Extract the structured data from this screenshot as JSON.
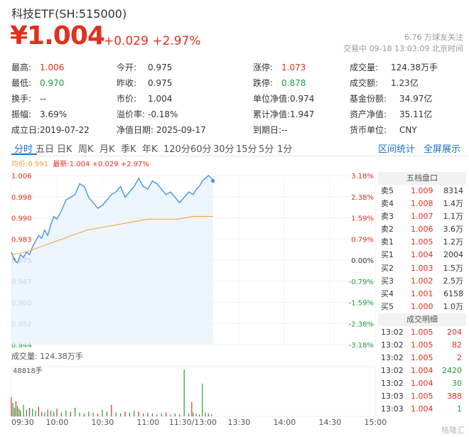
{
  "header": {
    "title": "科技ETF(SH:515000)",
    "price": "¥1.004",
    "change": "+0.029",
    "change_pct": "+2.97%",
    "followers": "6.76 万球友关注",
    "trade_status": "交易中 09-18 13:03:09 北京时间"
  },
  "stats": [
    [
      {
        "label": "最高:",
        "value": "1.006",
        "cls": "v-red"
      },
      {
        "label": "今开:",
        "value": "0.975",
        "cls": ""
      },
      {
        "label": "涨停:",
        "value": "1.073",
        "cls": "v-red"
      },
      {
        "label": "成交量:",
        "value": "124.38万手",
        "cls": ""
      }
    ],
    [
      {
        "label": "最低:",
        "value": "0.970",
        "cls": "v-green"
      },
      {
        "label": "昨收:",
        "value": "0.975",
        "cls": ""
      },
      {
        "label": "跌停:",
        "value": "0.878",
        "cls": "v-green"
      },
      {
        "label": "成交额:",
        "value": "1.23亿",
        "cls": ""
      }
    ],
    [
      {
        "label": "换手:",
        "value": "--",
        "cls": ""
      },
      {
        "label": "市价:",
        "value": "1.004",
        "cls": ""
      },
      {
        "label": "单位净值:",
        "value": "0.974",
        "cls": ""
      },
      {
        "label": "基金份额:",
        "value": "34.97亿",
        "cls": ""
      }
    ],
    [
      {
        "label": "振幅:",
        "value": "3.69%",
        "cls": ""
      },
      {
        "label": "溢价率:",
        "value": "-0.18%",
        "cls": ""
      },
      {
        "label": "累计净值:",
        "value": "1.947",
        "cls": ""
      },
      {
        "label": "资产净值:",
        "value": "35.11亿",
        "cls": ""
      }
    ],
    [
      {
        "label": "成立日:",
        "value": "2019-07-22",
        "cls": ""
      },
      {
        "label": "净值日期:",
        "value": "2025-09-17",
        "cls": ""
      },
      {
        "label": "到期日:",
        "value": "--",
        "cls": ""
      },
      {
        "label": "货币单位:",
        "value": "CNY",
        "cls": ""
      }
    ]
  ],
  "tabs": [
    "分时",
    "五日",
    "日K",
    "周K",
    "月K",
    "季K",
    "年K",
    "120分",
    "60分",
    "30分",
    "15分",
    "5分",
    "1分"
  ],
  "active_tab": 0,
  "right_tabs": [
    "区间统计",
    "全屏展示"
  ],
  "legend": {
    "avg_label": "均价:",
    "avg_value": "0.991",
    "latest_label": "最新:",
    "latest_value": "1.004 +0.029 +2.97%"
  },
  "volume": {
    "label": "成交量: 124.38万手",
    "max_label": "48818手"
  },
  "order_book": {
    "title": "五档盘口",
    "rows": [
      {
        "label": "卖5",
        "price": "1.009",
        "vol": "8314"
      },
      {
        "label": "卖4",
        "price": "1.008",
        "vol": "1.4万"
      },
      {
        "label": "卖3",
        "price": "1.007",
        "vol": "1.1万"
      },
      {
        "label": "卖2",
        "price": "1.006",
        "vol": "3.6万"
      },
      {
        "label": "卖1",
        "price": "1.005",
        "vol": "1.2万"
      },
      {
        "label": "买1",
        "price": "1.004",
        "vol": "2004"
      },
      {
        "label": "买2",
        "price": "1.003",
        "vol": "1.5万"
      },
      {
        "label": "买3",
        "price": "1.002",
        "vol": "2.5万"
      },
      {
        "label": "买4",
        "price": "1.001",
        "vol": "6158"
      },
      {
        "label": "买5",
        "price": "1.000",
        "vol": "1.0万"
      }
    ]
  },
  "trades": {
    "title": "成交明细",
    "rows": [
      {
        "time": "13:02",
        "price": "1.005",
        "vol": "204",
        "dir": "red"
      },
      {
        "time": "13:02",
        "price": "1.005",
        "vol": "82",
        "dir": "red"
      },
      {
        "time": "13:02",
        "price": "1.005",
        "vol": "2",
        "dir": "red"
      },
      {
        "time": "13:02",
        "price": "1.004",
        "vol": "2420",
        "dir": "green"
      },
      {
        "time": "13:02",
        "price": "1.004",
        "vol": "30",
        "dir": "green"
      },
      {
        "time": "13:03",
        "price": "1.005",
        "vol": "388",
        "dir": "red"
      },
      {
        "time": "13:03",
        "price": "1.004",
        "vol": "1",
        "dir": "green"
      }
    ]
  },
  "watermark": "格隆汇",
  "colors": {
    "up": "#e0301e",
    "down": "#1e9c3a",
    "price_line": "#3a8ee0",
    "avg_line": "#f0a030",
    "accent": "#1a6fc8"
  },
  "chart_data": {
    "type": "line",
    "y_ticks_left": [
      "1.006",
      "0.998",
      "0.990",
      "0.983",
      "0.975",
      "0.967",
      "0.960",
      "0.952",
      "0.944"
    ],
    "y_ticks_right": [
      "3.18%",
      "2.38%",
      "1.59%",
      "0.79%",
      "0.00%",
      "-0.79%",
      "-1.59%",
      "-2.38%",
      "-3.18%"
    ],
    "ylim": [
      0.944,
      1.006
    ],
    "x_ticks": [
      "09:30",
      "10:00",
      "10:30",
      "11:00",
      "11:30/13:00",
      "13:30",
      "14:00",
      "14:30",
      "15:00"
    ],
    "x_tick_minutes": [
      0,
      30,
      60,
      90,
      120,
      150,
      180,
      210,
      240
    ],
    "x_minutes_total": 240,
    "series": [
      {
        "name": "最新",
        "x": [
          0,
          2,
          4,
          6,
          8,
          10,
          12,
          14,
          16,
          18,
          20,
          22,
          24,
          26,
          28,
          30,
          33,
          36,
          39,
          42,
          45,
          48,
          51,
          54,
          57,
          60,
          63,
          66,
          69,
          72,
          75,
          78,
          81,
          84,
          87,
          90,
          93,
          96,
          99,
          102,
          105,
          108,
          111,
          114,
          117,
          120,
          122,
          124,
          126,
          128,
          130,
          132,
          133
        ],
        "values": [
          0.978,
          0.975,
          0.974,
          0.977,
          0.976,
          0.978,
          0.977,
          0.98,
          0.982,
          0.984,
          0.983,
          0.986,
          0.984,
          0.988,
          0.991,
          0.99,
          0.993,
          0.997,
          0.998,
          0.999,
          1.003,
          1.002,
          0.998,
          0.996,
          0.994,
          0.995,
          0.997,
          0.999,
          1.0,
          1.002,
          0.998,
          1.0,
          1.002,
          1.005,
          1.002,
          1.001,
          1.004,
          1.003,
          1.001,
          0.999,
          1.0,
          0.998,
          0.996,
          0.998,
          1.0,
          0.999,
          1.001,
          1.002,
          1.004,
          1.005,
          1.006,
          1.005,
          1.004
        ]
      },
      {
        "name": "均价",
        "x": [
          0,
          10,
          20,
          30,
          40,
          50,
          60,
          70,
          80,
          90,
          100,
          110,
          120,
          133
        ],
        "values": [
          0.977,
          0.978,
          0.98,
          0.982,
          0.984,
          0.986,
          0.987,
          0.988,
          0.989,
          0.99,
          0.99,
          0.99,
          0.991,
          0.991
        ]
      }
    ],
    "volume_series": {
      "name": "成交量",
      "unit": "手",
      "max": 48818,
      "x": [
        0,
        1,
        2,
        3,
        4,
        5,
        6,
        8,
        10,
        12,
        14,
        16,
        18,
        20,
        22,
        24,
        26,
        28,
        30,
        33,
        36,
        39,
        42,
        45,
        48,
        51,
        54,
        57,
        60,
        63,
        66,
        69,
        72,
        75,
        78,
        81,
        84,
        87,
        90,
        93,
        96,
        99,
        102,
        105,
        108,
        111,
        114,
        117,
        119,
        120,
        122,
        124,
        126,
        128,
        130,
        132
      ],
      "values": [
        20000,
        14000,
        9000,
        16000,
        11000,
        8000,
        6000,
        12000,
        7000,
        9000,
        8000,
        6000,
        10000,
        5000,
        4000,
        7000,
        6000,
        5000,
        8000,
        4000,
        6000,
        5000,
        9000,
        4000,
        3000,
        5000,
        4000,
        3000,
        7000,
        5000,
        12000,
        4000,
        3000,
        5000,
        4000,
        6000,
        5000,
        3000,
        4000,
        3000,
        2000,
        3000,
        4000,
        2000,
        3000,
        2000,
        48818,
        3000,
        15000,
        4000,
        3000,
        2000,
        34000,
        4000,
        3000,
        2000
      ]
    }
  }
}
